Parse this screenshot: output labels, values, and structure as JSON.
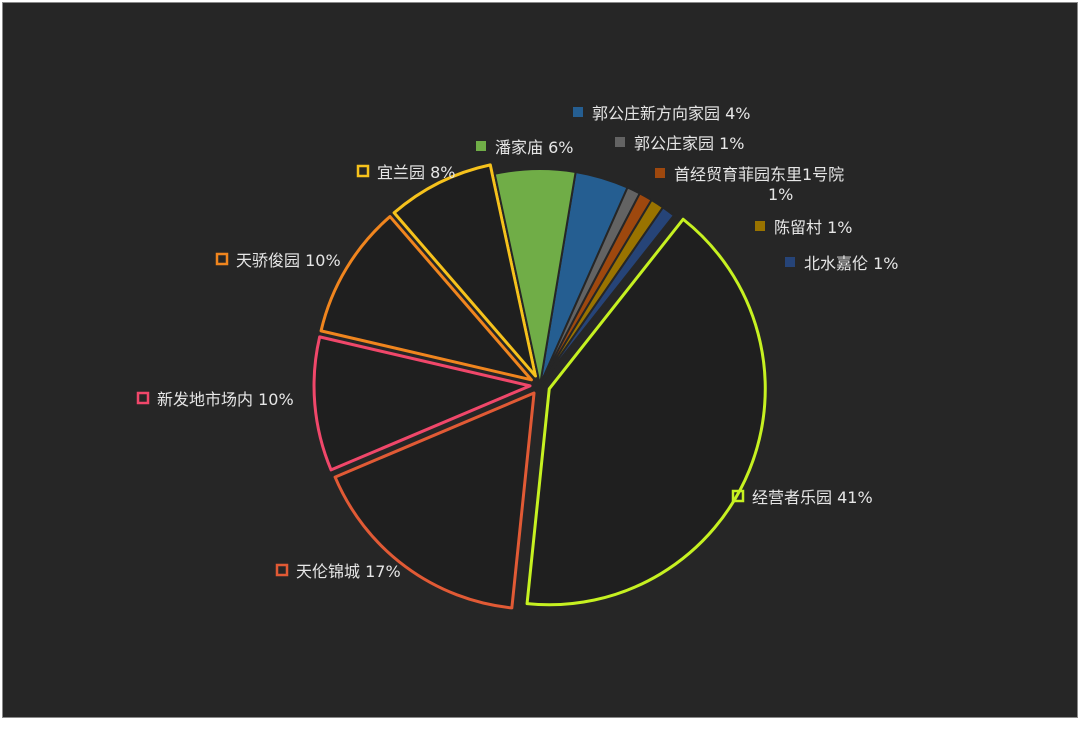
{
  "chart_data": {
    "type": "pie",
    "title": "",
    "legend": "labels beside slices",
    "slices": [
      {
        "label": "郭公庄新方向家园 4%",
        "value": 4,
        "color": "#255e91",
        "style": "solid"
      },
      {
        "label": "郭公庄家园 1%",
        "value": 1,
        "color": "#636363",
        "style": "solid"
      },
      {
        "label": "首经贸育菲园东里1号院 1%",
        "label_lines": [
          "首经贸育菲园东里1号院",
          "1%"
        ],
        "value": 1,
        "color": "#9e480e",
        "style": "solid"
      },
      {
        "label": "陈留村 1%",
        "value": 1,
        "color": "#997300",
        "style": "solid"
      },
      {
        "label": "北水嘉伦 1%",
        "value": 1,
        "color": "#264478",
        "style": "solid"
      },
      {
        "label": "经营者乐园 41%",
        "value": 41,
        "color": "#c6f121",
        "style": "outline"
      },
      {
        "label": "天伦锦城 17%",
        "value": 17,
        "color": "#e15a35",
        "style": "outline"
      },
      {
        "label": "新发地市场内 10%",
        "value": 10,
        "color": "#f0476a",
        "style": "outline"
      },
      {
        "label": "天骄俊园 10%",
        "value": 10,
        "color": "#f0851e",
        "style": "outline"
      },
      {
        "label": "宜兰园 8%",
        "value": 8,
        "color": "#f6c21c",
        "style": "outline"
      },
      {
        "label": "潘家庙 6%",
        "value": 6,
        "color": "#70ad47",
        "style": "solid"
      }
    ]
  }
}
